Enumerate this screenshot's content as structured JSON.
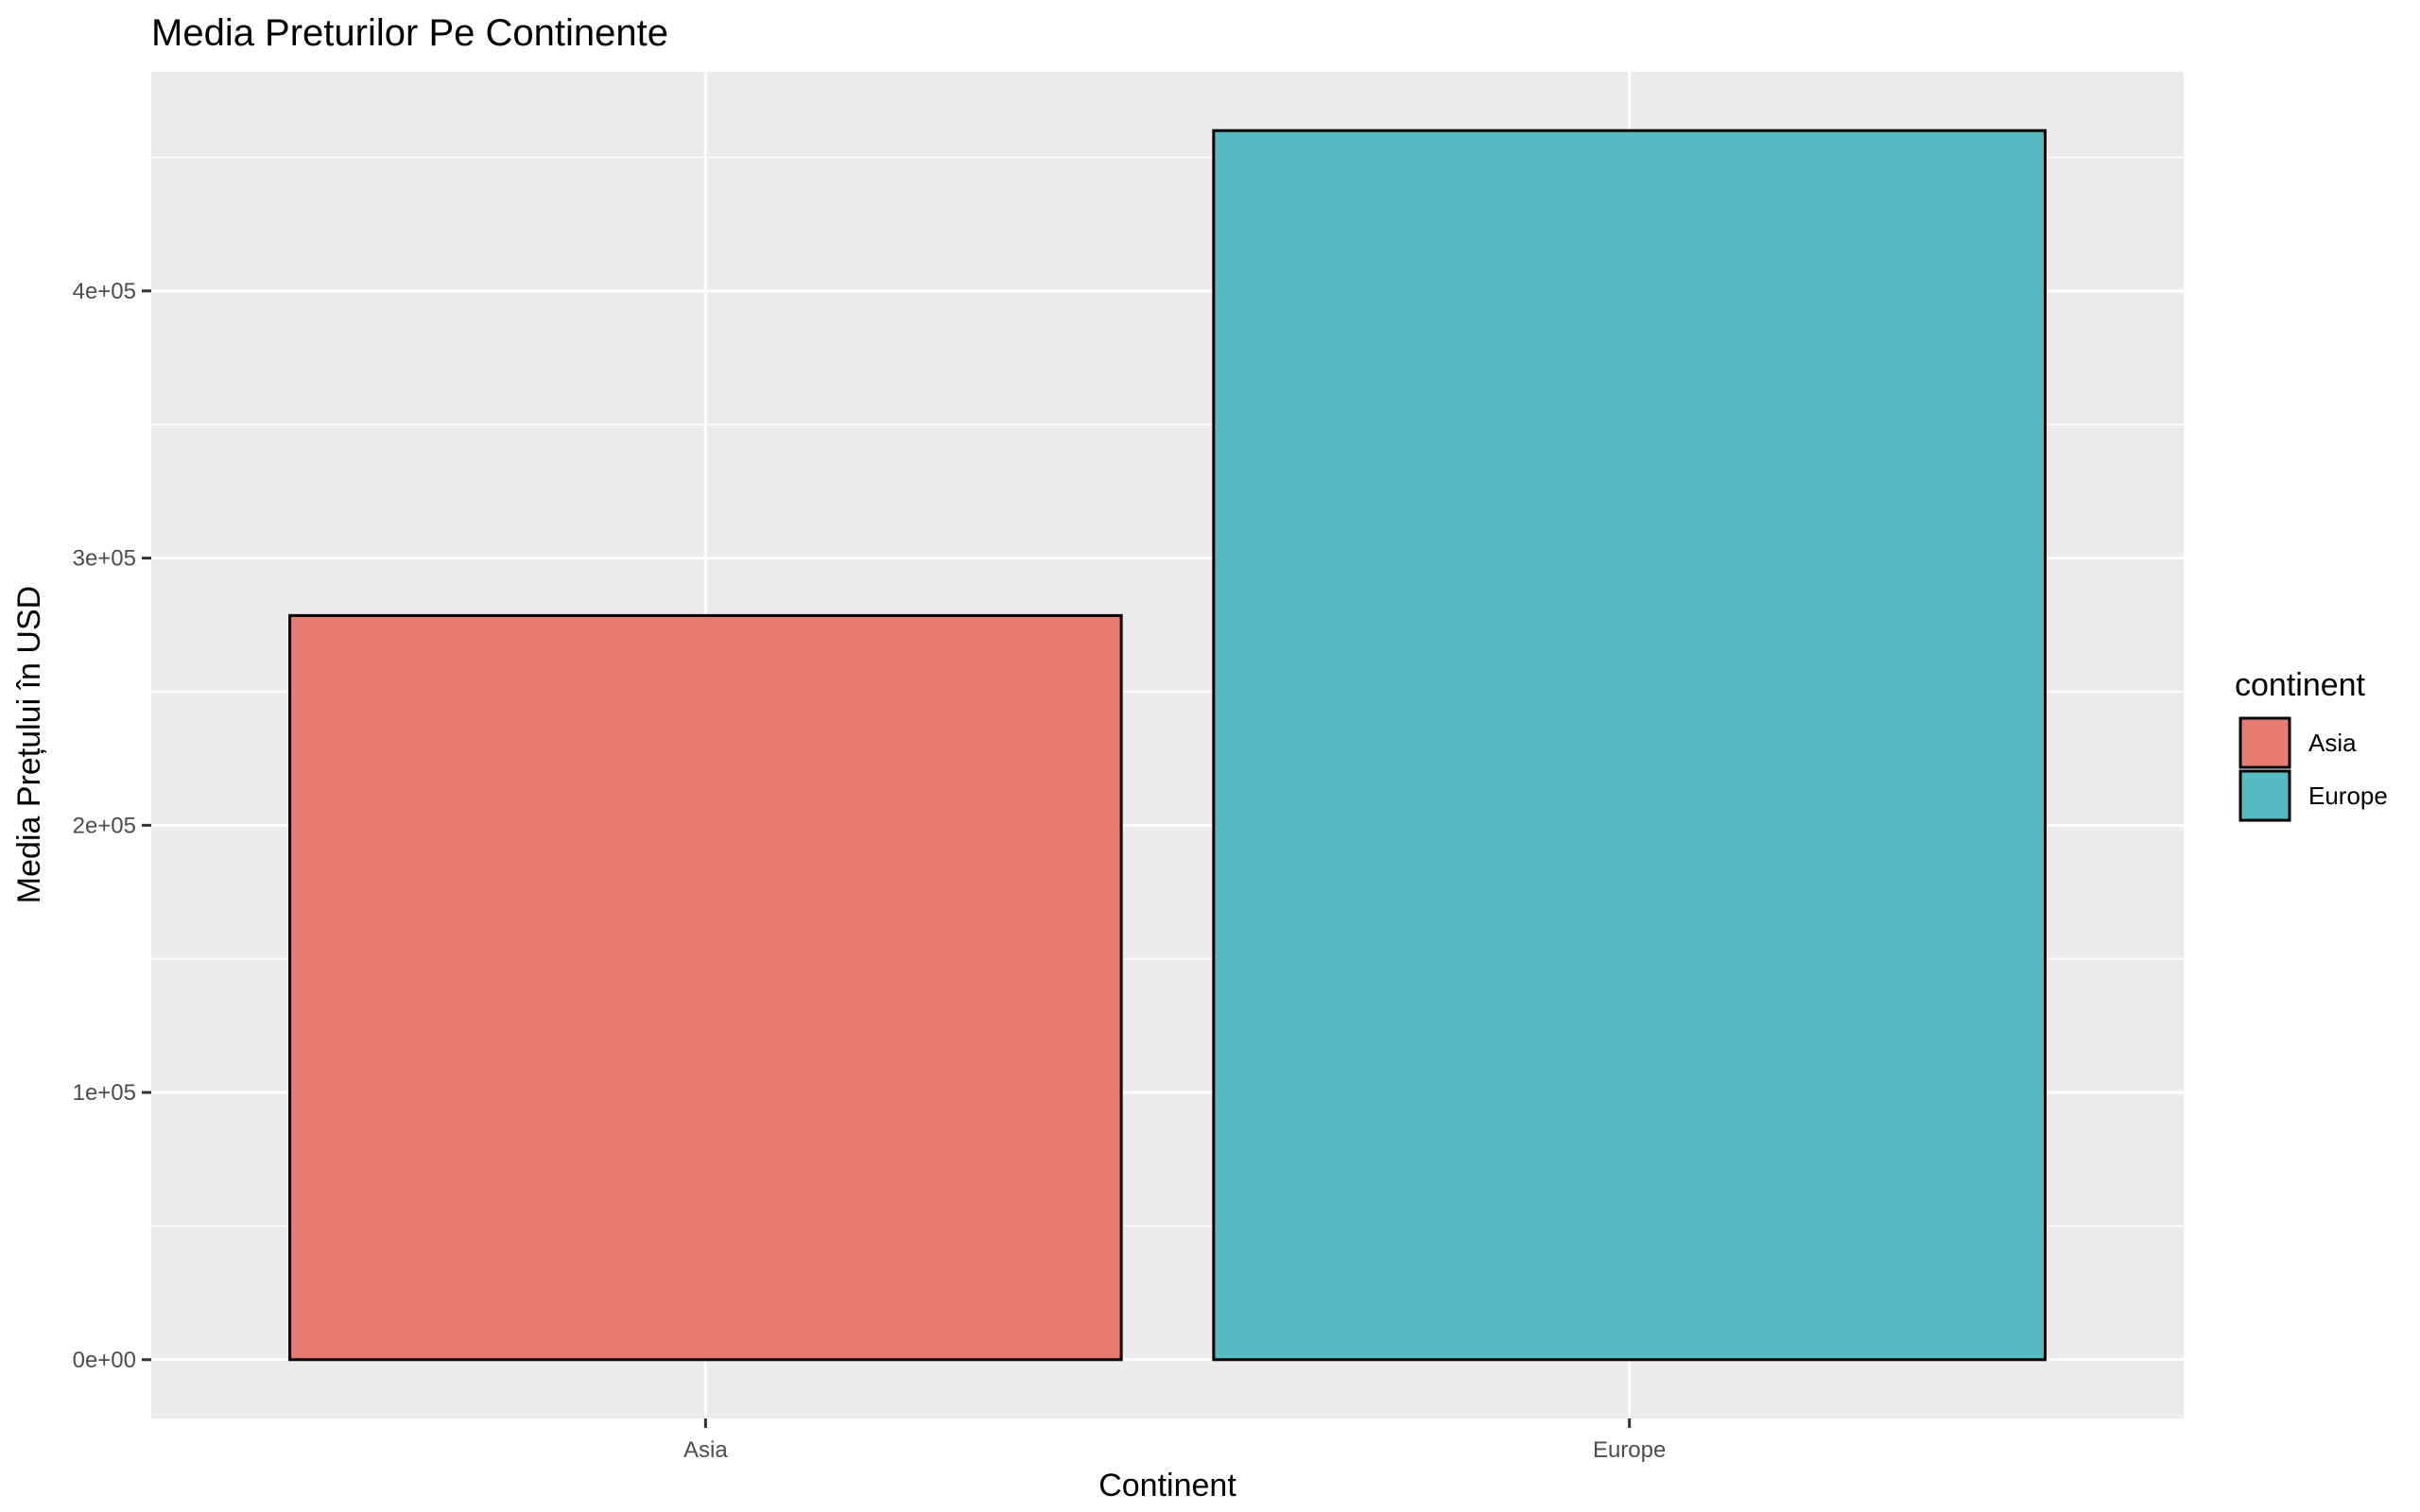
{
  "chart_data": {
    "type": "bar",
    "title": "Media Preturilor Pe Continente",
    "xlabel": "Continent",
    "ylabel": "Media Prețului în USD",
    "categories": [
      "Asia",
      "Europe"
    ],
    "values": [
      278500,
      460000
    ],
    "ylim": [
      -22000,
      482000
    ],
    "yticks": [
      0,
      100000,
      200000,
      300000,
      400000
    ],
    "ytick_labels": [
      "0e+00",
      "1e+05",
      "2e+05",
      "3e+05",
      "4e+05"
    ],
    "grid": true,
    "legend": {
      "title": "continent",
      "position": "right",
      "entries": [
        {
          "label": "Asia",
          "color": "#e77c73"
        },
        {
          "label": "Europe",
          "color": "#56bbc0"
        }
      ]
    },
    "colors": [
      "#e77c73",
      "#56bbc0"
    ]
  }
}
